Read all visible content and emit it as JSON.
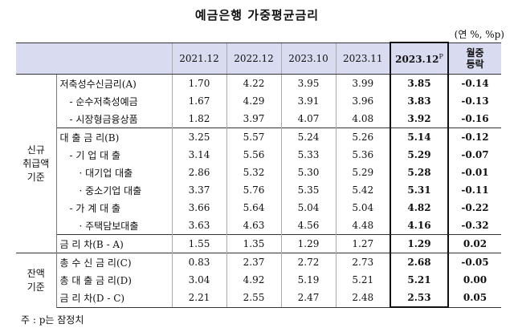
{
  "title": "예금은행 가중평균금리",
  "unit": "(연 %, %p)",
  "columns": [
    "2021.12",
    "2022.12",
    "2023.10",
    "2023.11",
    "2023.12",
    "월중\n등락"
  ],
  "hl_sup": "P",
  "groups": {
    "new": "신규\n취급액\n기준",
    "balance": "잔액\n기준"
  },
  "rows": [
    {
      "label": "저축성수신금리(A)",
      "values": [
        "1.70",
        "4.22",
        "3.95",
        "3.99",
        "3.85",
        "-0.14"
      ]
    },
    {
      "label": "- 순수저축성예금",
      "values": [
        "1.67",
        "4.29",
        "3.91",
        "3.96",
        "3.83",
        "-0.13"
      ]
    },
    {
      "label": "- 시장형금융상품",
      "values": [
        "1.82",
        "3.97",
        "4.07",
        "4.08",
        "3.92",
        "-0.16"
      ]
    },
    {
      "label": "대 출 금 리(B)",
      "values": [
        "3.25",
        "5.57",
        "5.24",
        "5.26",
        "5.14",
        "-0.12"
      ]
    },
    {
      "label": "- 기 업 대 출",
      "values": [
        "3.14",
        "5.56",
        "5.33",
        "5.36",
        "5.29",
        "-0.07"
      ]
    },
    {
      "label": "· 대기업 대출",
      "values": [
        "2.86",
        "5.32",
        "5.30",
        "5.29",
        "5.28",
        "-0.01"
      ]
    },
    {
      "label": "· 중소기업 대출",
      "values": [
        "3.37",
        "5.76",
        "5.35",
        "5.42",
        "5.31",
        "-0.11"
      ]
    },
    {
      "label": "- 가 계 대 출",
      "values": [
        "3.66",
        "5.64",
        "5.04",
        "5.04",
        "4.82",
        "-0.22"
      ]
    },
    {
      "label": "· 주택담보대출",
      "values": [
        "3.63",
        "4.63",
        "4.56",
        "4.48",
        "4.16",
        "-0.32"
      ]
    },
    {
      "label": "금 리 차(B - A)",
      "values": [
        "1.55",
        "1.35",
        "1.29",
        "1.27",
        "1.29",
        "0.02"
      ]
    },
    {
      "label": "총 수 신 금 리(C)",
      "values": [
        "0.83",
        "2.37",
        "2.72",
        "2.73",
        "2.68",
        "-0.05"
      ]
    },
    {
      "label": "총 대 출 금 리(D)",
      "values": [
        "3.04",
        "4.92",
        "5.19",
        "5.21",
        "5.21",
        "0.00"
      ]
    },
    {
      "label": "금 리 차(D - C)",
      "values": [
        "2.21",
        "2.55",
        "2.47",
        "2.48",
        "2.53",
        "0.05"
      ]
    }
  ],
  "note": "주 : p는 잠정치"
}
